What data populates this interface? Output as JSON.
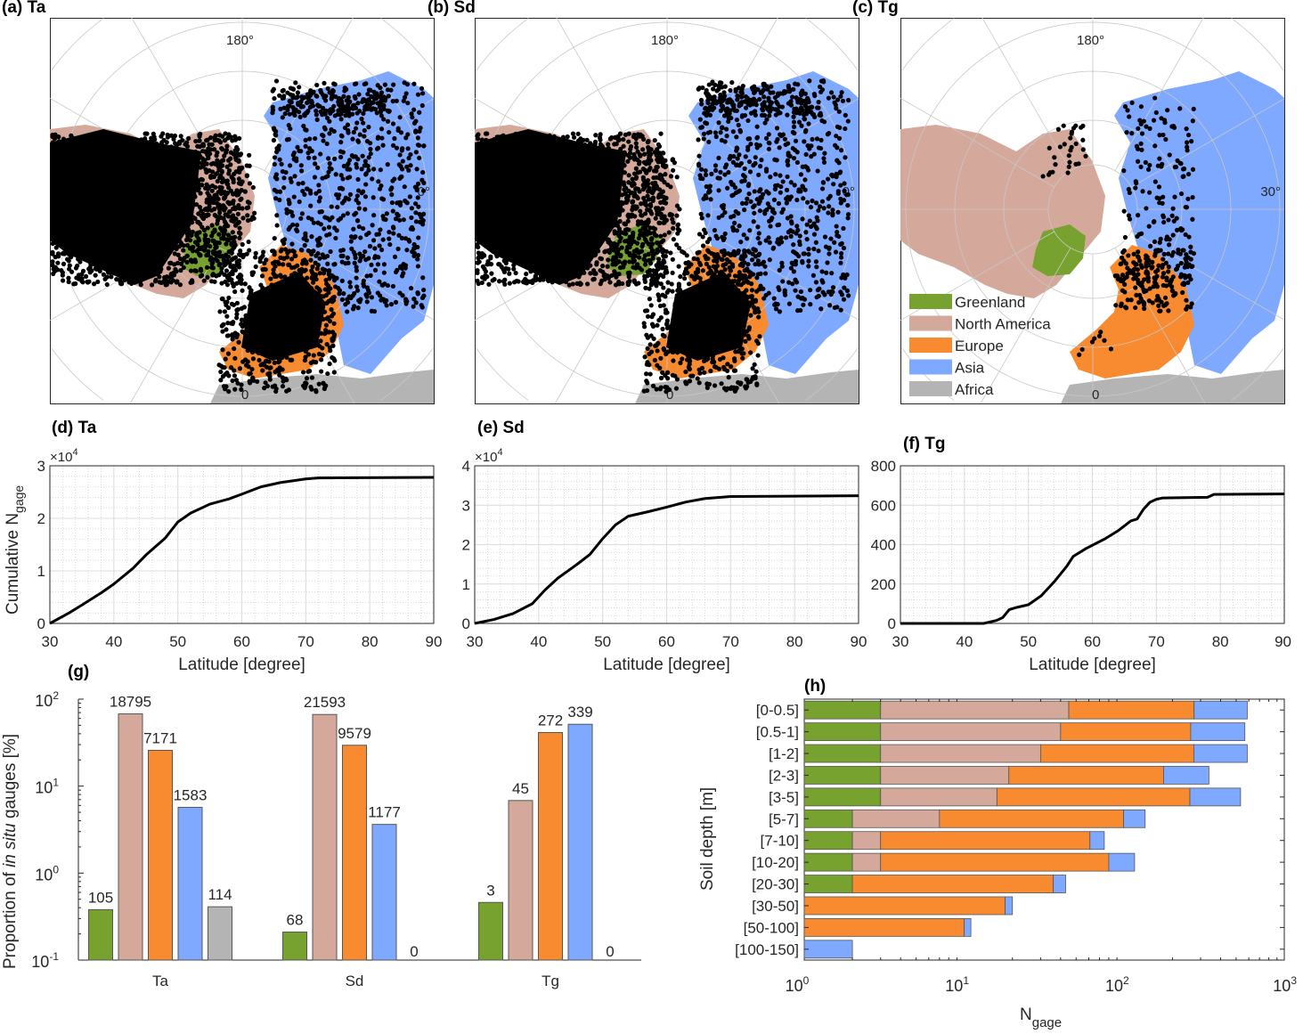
{
  "colors": {
    "greenland": "#77a22f",
    "north_america": "#d4a89a",
    "europe": "#f88a30",
    "asia": "#7fa8ff",
    "africa": "#b4b4b4",
    "dots": "#000000"
  },
  "maps": [
    {
      "title": "(a) Ta",
      "lon_top": "180°",
      "lon_right": "0°",
      "lon_bottom": "0"
    },
    {
      "title": "(b) Sd",
      "lon_top": "180°",
      "lon_right": "0°",
      "lon_bottom": "0"
    },
    {
      "title": "(c) Tg",
      "lon_top": "180°",
      "lon_right": "30°",
      "lon_bottom": "0"
    }
  ],
  "legend": [
    "Greenland",
    "North America",
    "Europe",
    "Asia",
    "Africa"
  ],
  "chart_data": [
    {
      "panel": "d",
      "title": "(d) Ta",
      "type": "line",
      "xlabel": "Latitude [degree]",
      "ylabel_main": "Cumulative N",
      "ylabel_sub": "gage",
      "y_exponent": "×10",
      "y_exponent_power": "4",
      "xlim": [
        30,
        90
      ],
      "ylim": [
        0,
        3
      ],
      "xticks": [
        "30",
        "40",
        "50",
        "60",
        "70",
        "80",
        "90"
      ],
      "yticks": [
        "0",
        "1",
        "2",
        "3"
      ],
      "grid": "major+minor",
      "x": [
        30,
        33,
        35,
        38,
        40,
        43,
        45,
        48,
        50,
        52,
        55,
        58,
        60,
        63,
        66,
        70,
        72,
        90
      ],
      "y": [
        0,
        0.2,
        0.35,
        0.58,
        0.75,
        1.05,
        1.3,
        1.62,
        1.93,
        2.1,
        2.27,
        2.37,
        2.46,
        2.6,
        2.68,
        2.75,
        2.77,
        2.78
      ]
    },
    {
      "panel": "e",
      "title": "(e) Sd",
      "type": "line",
      "xlabel": "Latitude [degree]",
      "y_exponent": "×10",
      "y_exponent_power": "4",
      "xlim": [
        30,
        90
      ],
      "ylim": [
        0,
        4
      ],
      "xticks": [
        "30",
        "40",
        "50",
        "60",
        "70",
        "80",
        "90"
      ],
      "yticks": [
        "0",
        "1",
        "2",
        "3",
        "4"
      ],
      "grid": "major+minor",
      "x": [
        30,
        33,
        36,
        39,
        41,
        43,
        46,
        48,
        50,
        52,
        54,
        57,
        60,
        63,
        66,
        70,
        90
      ],
      "y": [
        0,
        0.1,
        0.25,
        0.5,
        0.85,
        1.15,
        1.5,
        1.75,
        2.15,
        2.5,
        2.72,
        2.83,
        2.95,
        3.08,
        3.17,
        3.22,
        3.24
      ]
    },
    {
      "panel": "f",
      "title": "(f) Tg",
      "type": "line",
      "xlabel": "Latitude [degree]",
      "xlim": [
        30,
        90
      ],
      "ylim": [
        0,
        800
      ],
      "xticks": [
        "30",
        "40",
        "50",
        "60",
        "70",
        "80",
        "90"
      ],
      "yticks": [
        "0",
        "200",
        "400",
        "600",
        "800"
      ],
      "grid": "major+minor",
      "x": [
        30,
        43,
        45,
        46,
        47,
        48,
        50,
        52,
        54,
        56,
        57,
        59,
        62,
        64,
        66,
        67,
        68,
        69,
        70,
        71,
        78,
        79,
        90
      ],
      "y": [
        0,
        0,
        15,
        30,
        70,
        80,
        95,
        140,
        210,
        290,
        340,
        380,
        430,
        470,
        520,
        530,
        580,
        615,
        630,
        637,
        640,
        655,
        657
      ]
    },
    {
      "panel": "g",
      "title": "(g)",
      "type": "bar",
      "ylabel_pre": "Proportion of ",
      "ylabel_italic": "in situ",
      "ylabel_post": " gauges [%]",
      "yscale": "log",
      "ylim": [
        0.1,
        100
      ],
      "yticks": [
        {
          "base": "10",
          "exp": "2"
        },
        {
          "base": "10",
          "exp": "1"
        },
        {
          "base": "10",
          "exp": "0"
        },
        {
          "base": "10",
          "exp": "-1"
        }
      ],
      "categories": [
        "Ta",
        "Sd",
        "Tg"
      ],
      "series_regions": [
        "greenland",
        "north_america",
        "europe",
        "asia",
        "africa"
      ],
      "counts": [
        [
          105,
          18795,
          7171,
          1583,
          114
        ],
        [
          68,
          21593,
          9579,
          1177,
          0
        ],
        [
          3,
          45,
          272,
          339,
          0
        ]
      ],
      "percent": [
        [
          0.38,
          67.7,
          25.8,
          5.7,
          0.41
        ],
        [
          0.21,
          66.6,
          29.5,
          3.63,
          0
        ],
        [
          0.46,
          6.83,
          41.3,
          51.4,
          0
        ]
      ],
      "labels": [
        [
          "105",
          "18795",
          "7171",
          "1583",
          "114"
        ],
        [
          "68",
          "21593",
          "9579",
          "1177",
          "0"
        ],
        [
          "3",
          "45",
          "272",
          "339",
          "0"
        ]
      ]
    },
    {
      "panel": "h",
      "title": "(h)",
      "type": "bar",
      "orientation": "horizontal",
      "stacked": true,
      "xscale": "log",
      "xlim": [
        1,
        1000
      ],
      "xlabel_main": "N",
      "xlabel_sub": "gage",
      "ylabel": "Soil depth [m]",
      "xticks": [
        {
          "base": "10",
          "exp": "0"
        },
        {
          "base": "10",
          "exp": "1"
        },
        {
          "base": "10",
          "exp": "2"
        },
        {
          "base": "10",
          "exp": "3"
        }
      ],
      "categories": [
        "[0-0.5]",
        "[0.5-1]",
        "[1-2]",
        "[2-3]",
        "[3-5]",
        "[5-7]",
        "[7-10]",
        "[10-20]",
        "[20-30]",
        "[30-50]",
        "[50-100]",
        "[100-150]"
      ],
      "series_regions": [
        "greenland",
        "north_america",
        "europe",
        "asia"
      ],
      "values": [
        [
          3,
          42,
          228,
          314
        ],
        [
          3,
          37,
          220,
          307
        ],
        [
          3,
          27,
          242,
          315
        ],
        [
          3,
          16,
          157,
          162
        ],
        [
          3,
          13,
          241,
          276
        ],
        [
          2,
          5,
          92,
          36
        ],
        [
          2,
          1,
          58,
          14
        ],
        [
          2,
          1,
          77,
          36
        ],
        [
          2,
          0,
          34,
          7
        ],
        [
          0,
          0,
          18,
          2
        ],
        [
          0,
          0,
          10,
          1
        ],
        [
          0,
          0,
          0,
          2
        ]
      ]
    }
  ]
}
